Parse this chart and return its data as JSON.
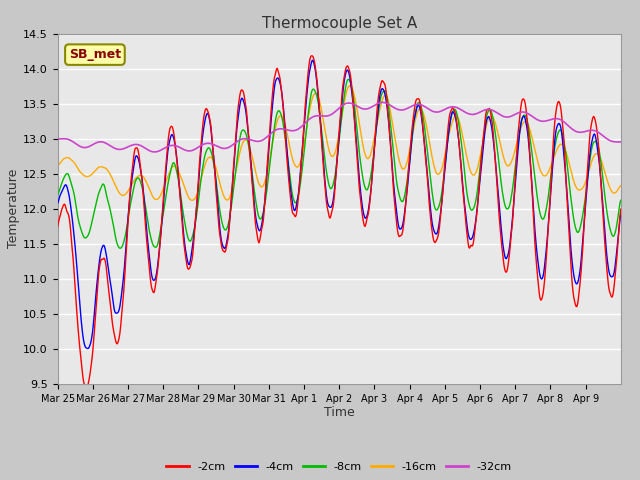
{
  "title": "Thermocouple Set A",
  "xlabel": "Time",
  "ylabel": "Temperature",
  "ylim": [
    9.5,
    14.5
  ],
  "fig_bg": "#c8c8c8",
  "plot_bg": "#e8e8e8",
  "series_colors": {
    "-2cm": "#ff0000",
    "-4cm": "#0000ff",
    "-8cm": "#00bb00",
    "-16cm": "#ffaa00",
    "-32cm": "#cc44cc"
  },
  "xtick_labels": [
    "Mar 25",
    "Mar 26",
    "Mar 27",
    "Mar 28",
    "Mar 29",
    "Mar 30",
    "Mar 31",
    "Apr 1",
    "Apr 2",
    "Apr 3",
    "Apr 4",
    "Apr 5",
    "Apr 6",
    "Apr 7",
    "Apr 8",
    "Apr 9"
  ],
  "annotation": "SB_met",
  "yticks": [
    9.5,
    10.0,
    10.5,
    11.0,
    11.5,
    12.0,
    12.5,
    13.0,
    13.5,
    14.0,
    14.5
  ]
}
